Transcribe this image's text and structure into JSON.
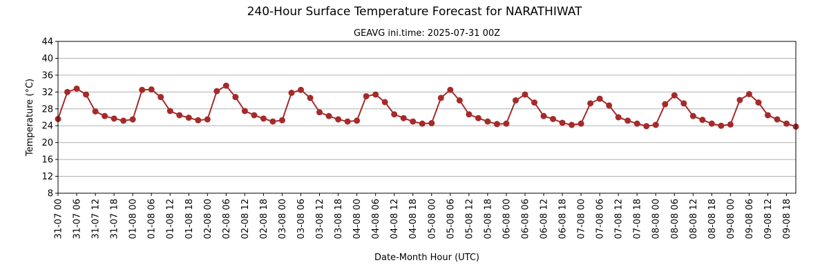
{
  "chart_data": {
    "type": "line",
    "title": "240-Hour Surface Temperature Forecast for NARATHIWAT",
    "subtitle": "GEAVG ini.time: 2025-07-31 00Z",
    "xlabel": "Date-Month Hour (UTC)",
    "ylabel": "Temperature (°C)",
    "ylim": [
      8,
      44
    ],
    "yticks": [
      8,
      12,
      16,
      20,
      24,
      28,
      32,
      36,
      40,
      44
    ],
    "xrange_hours": [
      0,
      237
    ],
    "step_hours": 3,
    "grid": "horizontal",
    "xtick_labels": [
      "31-07 00",
      "31-07 06",
      "31-07 12",
      "31-07 18",
      "01-08 00",
      "01-08 06",
      "01-08 12",
      "01-08 18",
      "02-08 00",
      "02-08 06",
      "02-08 12",
      "02-08 18",
      "03-08 00",
      "03-08 06",
      "03-08 12",
      "03-08 18",
      "04-08 00",
      "04-08 06",
      "04-08 12",
      "04-08 18",
      "05-08 00",
      "05-08 06",
      "05-08 12",
      "05-08 18",
      "06-08 00",
      "06-08 06",
      "06-08 12",
      "06-08 18",
      "07-08 00",
      "07-08 06",
      "07-08 12",
      "07-08 18",
      "08-08 00",
      "08-08 06",
      "08-08 12",
      "08-08 18",
      "09-08 00",
      "09-08 06",
      "09-08 12",
      "09-08 18"
    ],
    "series": [
      {
        "color": "#a52a2a",
        "values": [
          25.6,
          32.0,
          32.8,
          31.4,
          27.4,
          26.3,
          25.7,
          25.2,
          25.5,
          32.5,
          32.6,
          30.8,
          27.5,
          26.5,
          25.9,
          25.3,
          25.5,
          32.2,
          33.5,
          30.8,
          27.5,
          26.5,
          25.7,
          25.0,
          25.3,
          31.8,
          32.5,
          30.6,
          27.2,
          26.3,
          25.5,
          25.0,
          25.2,
          31.0,
          31.4,
          29.6,
          26.7,
          25.8,
          25.0,
          24.5,
          24.6,
          30.6,
          32.5,
          30.0,
          26.7,
          25.8,
          25.0,
          24.4,
          24.5,
          30.0,
          31.4,
          29.5,
          26.3,
          25.6,
          24.7,
          24.2,
          24.5,
          29.3,
          30.4,
          28.8,
          26.0,
          25.2,
          24.5,
          23.9,
          24.2,
          29.1,
          31.2,
          29.3,
          26.3,
          25.4,
          24.5,
          24.0,
          24.3,
          30.1,
          31.5,
          29.5,
          26.5,
          25.5,
          24.5,
          23.8
        ]
      }
    ]
  }
}
